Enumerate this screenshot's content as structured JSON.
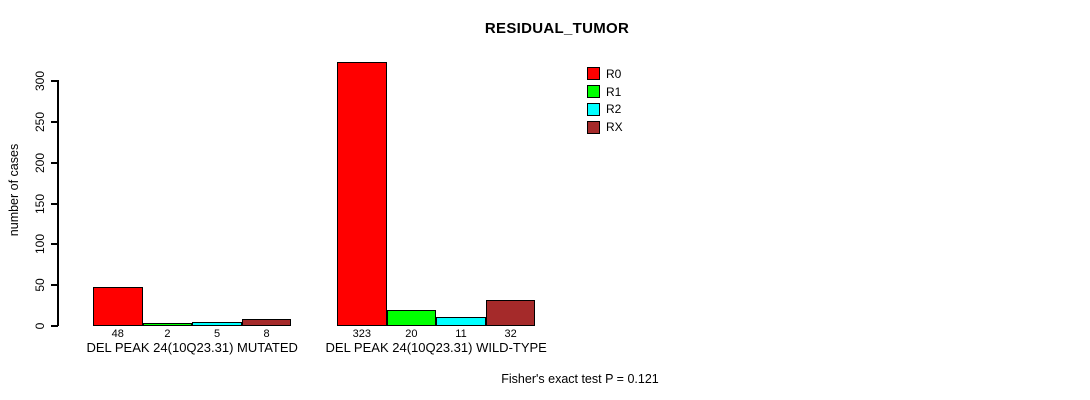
{
  "chart_data": {
    "type": "bar",
    "title": "RESIDUAL_TUMOR",
    "xlabel": "",
    "ylabel": "number of cases",
    "ylim": [
      0,
      330
    ],
    "yticks": [
      0,
      50,
      100,
      150,
      200,
      250,
      300
    ],
    "grid": false,
    "legend_position": "top-right",
    "categories": [
      "DEL PEAK 24(10Q23.31) MUTATED",
      "DEL PEAK 24(10Q23.31) WILD-TYPE"
    ],
    "series": [
      {
        "name": "R0",
        "color": "#FF0000",
        "values": [
          48,
          323
        ]
      },
      {
        "name": "R1",
        "color": "#00FF00",
        "values": [
          2,
          20
        ]
      },
      {
        "name": "R2",
        "color": "#00FFFF",
        "values": [
          5,
          11
        ]
      },
      {
        "name": "RX",
        "color": "#A52A2A",
        "values": [
          8,
          32
        ]
      }
    ],
    "bar_value_labels": [
      [
        48,
        2,
        5,
        8
      ],
      [
        323,
        20,
        11,
        32
      ]
    ],
    "annotation": "Fisher's exact test P = 0.121"
  }
}
